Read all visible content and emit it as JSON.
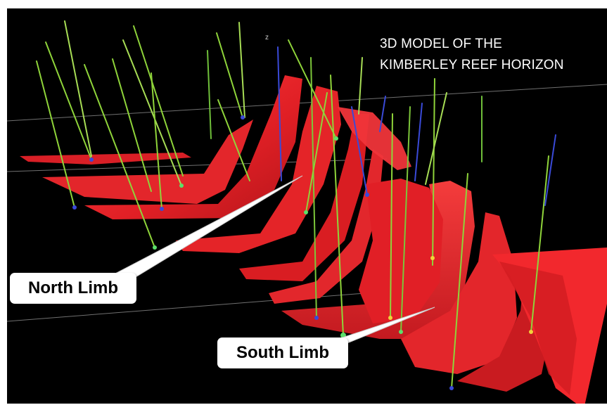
{
  "title": {
    "line1": "3D MODEL OF THE",
    "line2": "KIMBERLEY REEF HORIZON"
  },
  "labels": {
    "north": "North Limb",
    "south": "South Limb"
  },
  "axis": {
    "z": "z"
  },
  "colors": {
    "background": "#000000",
    "reef_surface": "#e8242a",
    "reef_dark": "#7a0d12",
    "drillhole_green": "#8fd43a",
    "drillhole_blue": "#3a4ad8",
    "grid_line": "#8c8c8c"
  }
}
